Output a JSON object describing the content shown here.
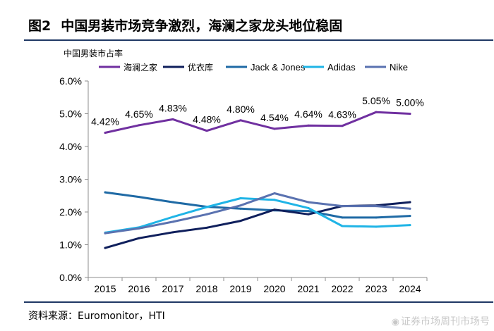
{
  "figure": {
    "number": "图2",
    "title": "中国男装市场竞争激烈，海澜之家龙头地位稳固",
    "source": "资料来源：Euromonitor，HTI",
    "watermark": "证券市场周刊市场号",
    "watermark_icon": "weibo-icon"
  },
  "chart_data": {
    "type": "line",
    "title": "",
    "ylabel": "中国男装市占率",
    "xlabel": "",
    "x": [
      "2015",
      "2016",
      "2017",
      "2018",
      "2019",
      "2020",
      "2021",
      "2022",
      "2023",
      "2024"
    ],
    "ylim": [
      0,
      6
    ],
    "yticks": [
      "0.0%",
      "1.0%",
      "2.0%",
      "3.0%",
      "4.0%",
      "5.0%",
      "6.0%"
    ],
    "ytick_values": [
      0,
      1,
      2,
      3,
      4,
      5,
      6
    ],
    "grid": false,
    "legend_position": "top",
    "series": [
      {
        "name": "海澜之家",
        "color": "#7030a0",
        "values": [
          4.42,
          4.65,
          4.83,
          4.48,
          4.8,
          4.54,
          4.64,
          4.63,
          5.05,
          5.0
        ],
        "labels": [
          "4.42%",
          "4.65%",
          "4.83%",
          "4.48%",
          "4.80%",
          "4.54%",
          "4.64%",
          "4.63%",
          "5.05%",
          "5.00%"
        ]
      },
      {
        "name": "优衣库",
        "color": "#0f1f5c",
        "values": [
          0.9,
          1.2,
          1.38,
          1.52,
          1.73,
          2.07,
          1.93,
          2.18,
          2.2,
          2.3
        ]
      },
      {
        "name": "Jack & Jones",
        "color": "#1f6aa5",
        "values": [
          2.6,
          2.46,
          2.3,
          2.16,
          2.1,
          2.05,
          2.03,
          1.83,
          1.83,
          1.88
        ]
      },
      {
        "name": "Adidas",
        "color": "#1fb4e6",
        "values": [
          1.37,
          1.53,
          1.85,
          2.15,
          2.42,
          2.37,
          2.12,
          1.57,
          1.55,
          1.6
        ]
      },
      {
        "name": "Nike",
        "color": "#5a72b0",
        "values": [
          1.35,
          1.5,
          1.7,
          1.93,
          2.2,
          2.57,
          2.3,
          2.18,
          2.18,
          2.1
        ]
      }
    ]
  }
}
